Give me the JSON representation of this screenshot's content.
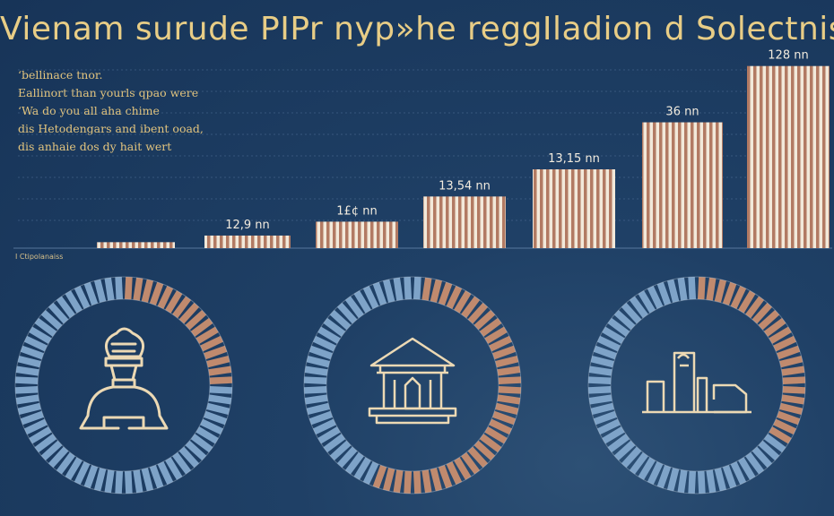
{
  "title": "Vienam surude PIPr nyp»he reggIladion d Solectniss",
  "notes": [
    "ʻbellinace tnor.",
    "Eallinort than yourls qpao were",
    "ʻWa do you all aha chime",
    "dis Hetodengars and ibent ooad,",
    "dis anhaie dos dy hait wert"
  ],
  "source": "I Ctipolanaiss",
  "colors": {
    "background": "#1f4066",
    "title": "#e8cd86",
    "bar_stripe_light": "#f2e9da",
    "bar_stripe_dark": "#b27a63",
    "ring_blue": "#7ea3c8",
    "ring_copper": "#c08a6e",
    "icon_stroke": "#ecd9b4"
  },
  "chart_data": [
    {
      "type": "bar",
      "categories": [
        "",
        "",
        "",
        "",
        "",
        "",
        ""
      ],
      "values": [
        0.9,
        1.9,
        4.0,
        7.8,
        11.9,
        19.0,
        27.5
      ],
      "data_labels": [
        "",
        "12,9 nn",
        "1£¢ nn",
        "13,54 nn",
        "13,15 nn",
        "36 nn",
        "128 nn"
      ],
      "grid": true,
      "xlabel": "",
      "ylabel": ""
    },
    {
      "type": "pie",
      "style": "donut",
      "icon": "ice-cream-cart-icon",
      "values": [
        25,
        75
      ],
      "colors": [
        "#c08a6e",
        "#7ea3c8"
      ]
    },
    {
      "type": "pie",
      "style": "donut",
      "icon": "temple-icon",
      "values": [
        55,
        45
      ],
      "colors": [
        "#c08a6e",
        "#7ea3c8"
      ]
    },
    {
      "type": "pie",
      "style": "donut",
      "icon": "buildings-chart-icon",
      "values": [
        35,
        65
      ],
      "colors": [
        "#c08a6e",
        "#7ea3c8"
      ]
    }
  ]
}
